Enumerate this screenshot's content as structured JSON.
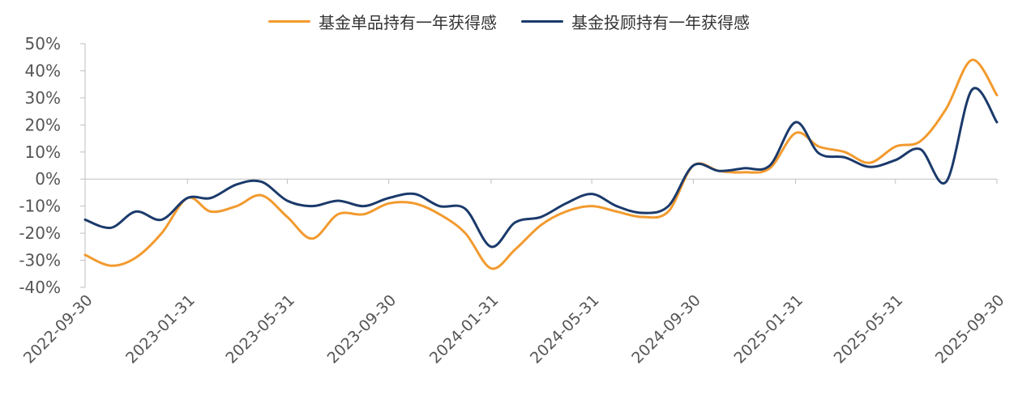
{
  "chart_data": {
    "type": "line",
    "title": "",
    "xlabel": "",
    "ylabel": "",
    "ylim": [
      -40,
      50
    ],
    "yticks": [
      "50%",
      "40%",
      "30%",
      "20%",
      "10%",
      "0%",
      "-10%",
      "-20%",
      "-30%",
      "-40%"
    ],
    "ytick_values": [
      50,
      40,
      30,
      20,
      10,
      0,
      -10,
      -20,
      -30,
      -40
    ],
    "x_ticks": [
      "2022-09-30",
      "2023-01-31",
      "2023-05-31",
      "2023-09-30",
      "2024-01-31",
      "2024-05-31",
      "2024-09-30",
      "2025-01-31",
      "2025-05-31",
      "2025-09-30"
    ],
    "legend_position": "top-center",
    "grid": false,
    "x": [
      "2022-09-30",
      "2022-10-31",
      "2022-11-30",
      "2022-12-31",
      "2023-01-31",
      "2023-02-28",
      "2023-03-31",
      "2023-04-30",
      "2023-05-31",
      "2023-06-30",
      "2023-07-31",
      "2023-08-31",
      "2023-09-30",
      "2023-10-31",
      "2023-11-30",
      "2023-12-31",
      "2024-01-31",
      "2024-02-29",
      "2024-03-31",
      "2024-04-30",
      "2024-05-31",
      "2024-06-30",
      "2024-07-31",
      "2024-08-31",
      "2024-09-30",
      "2024-10-31",
      "2024-11-30",
      "2024-12-31",
      "2025-01-31",
      "2025-02-28",
      "2025-03-31",
      "2025-04-30",
      "2025-05-31",
      "2025-06-30",
      "2025-07-31",
      "2025-08-31",
      "2025-09-30"
    ],
    "series": [
      {
        "name": "基金单品持有一年获得感",
        "color": "#F29A2E",
        "values": [
          -28,
          -32,
          -29,
          -20,
          -7,
          -12,
          -10,
          -6,
          -14,
          -22,
          -13,
          -13,
          -9,
          -9,
          -13,
          -20,
          -33,
          -26,
          -17,
          -12,
          -10,
          -12,
          -14,
          -12,
          5,
          3,
          2.5,
          4,
          17,
          12,
          10,
          6,
          12,
          14,
          26,
          44,
          31
        ]
      },
      {
        "name": "基金投顾持有一年获得感",
        "color": "#1B3A6B",
        "values": [
          -15,
          -18,
          -12,
          -15,
          -7,
          -7,
          -2,
          -1,
          -8,
          -10,
          -8,
          -10,
          -7,
          -5.5,
          -10,
          -11,
          -25,
          -16,
          -14,
          -9,
          -5.5,
          -10,
          -12.5,
          -10,
          5,
          3,
          4,
          5,
          21,
          9.5,
          8,
          4.5,
          7,
          11,
          -1,
          33,
          21
        ]
      }
    ]
  }
}
